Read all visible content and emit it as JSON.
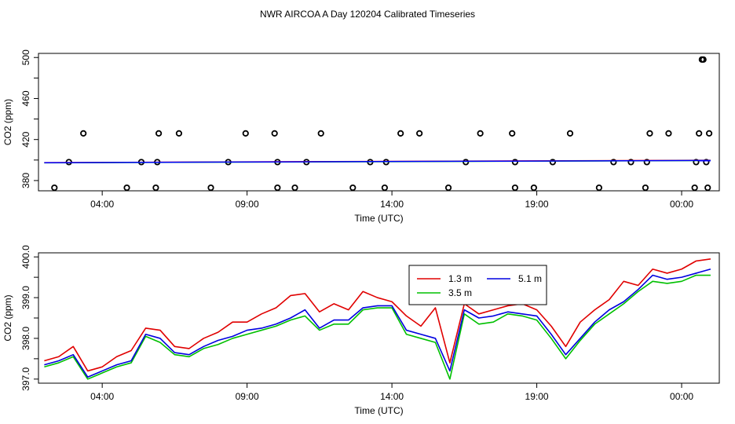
{
  "title": "NWR AIRCOA A  Day 120204  Calibrated Timeseries",
  "chart_data": [
    {
      "type": "scatter",
      "xlabel": "Time (UTC)",
      "ylabel": "CO2 (ppm)",
      "xlim": [
        1.8,
        25.3
      ],
      "ylim": [
        370,
        504
      ],
      "x_ticks": [
        4,
        9,
        14,
        19,
        24
      ],
      "x_tick_labels": [
        "04:00",
        "09:00",
        "14:00",
        "19:00",
        "00:00"
      ],
      "y_ticks": [
        380,
        420,
        460,
        500
      ],
      "y_tick_labels": [
        "380",
        "420",
        "460",
        "500"
      ],
      "y_minor_ticks": [
        400,
        440,
        480
      ],
      "grid": false,
      "series": [
        {
          "color": "#000000",
          "marker": "open-circle",
          "points": [
            [
              2.35,
              373
            ],
            [
              2.85,
              398
            ],
            [
              3.35,
              426
            ],
            [
              4.85,
              373
            ],
            [
              5.35,
              398
            ],
            [
              5.85,
              373
            ],
            [
              5.9,
              398
            ],
            [
              5.95,
              426
            ],
            [
              6.65,
              426
            ],
            [
              7.75,
              373
            ],
            [
              8.35,
              398
            ],
            [
              8.95,
              426
            ],
            [
              9.95,
              426
            ],
            [
              10.05,
              373
            ],
            [
              10.05,
              398
            ],
            [
              10.65,
              373
            ],
            [
              11.05,
              398
            ],
            [
              11.55,
              426
            ],
            [
              12.65,
              373
            ],
            [
              13.25,
              398
            ],
            [
              13.75,
              373
            ],
            [
              13.8,
              398
            ],
            [
              14.3,
              426
            ],
            [
              14.95,
              426
            ],
            [
              15.95,
              373
            ],
            [
              16.55,
              398
            ],
            [
              17.05,
              426
            ],
            [
              18.15,
              426
            ],
            [
              18.25,
              398
            ],
            [
              18.25,
              373
            ],
            [
              18.9,
              373
            ],
            [
              19.55,
              398
            ],
            [
              20.15,
              426
            ],
            [
              21.15,
              373
            ],
            [
              21.65,
              398
            ],
            [
              22.25,
              398
            ],
            [
              22.75,
              373
            ],
            [
              22.8,
              398
            ],
            [
              22.9,
              426
            ],
            [
              23.55,
              426
            ],
            [
              24.45,
              373
            ],
            [
              24.5,
              398
            ],
            [
              24.6,
              426
            ],
            [
              24.7,
              498
            ],
            [
              24.75,
              498
            ],
            [
              24.85,
              398
            ],
            [
              24.9,
              373
            ],
            [
              24.95,
              426
            ]
          ]
        },
        {
          "color": "#ff0000",
          "type": "line",
          "x": [
            2.0,
            25.0
          ],
          "y": [
            397.5,
            399.8
          ]
        },
        {
          "color": "#00cc00",
          "type": "line",
          "x": [
            2.0,
            25.0
          ],
          "y": [
            397.3,
            399.5
          ]
        },
        {
          "color": "#0000ff",
          "type": "line",
          "x": [
            2.0,
            25.0
          ],
          "y": [
            397.4,
            399.6
          ]
        }
      ]
    },
    {
      "type": "line",
      "xlabel": "Time (UTC)",
      "ylabel": "CO2 (ppm)",
      "xlim": [
        1.8,
        25.3
      ],
      "ylim": [
        396.9,
        400.1
      ],
      "x_ticks": [
        4,
        9,
        14,
        19,
        24
      ],
      "x_tick_labels": [
        "04:00",
        "09:00",
        "14:00",
        "19:00",
        "00:00"
      ],
      "y_ticks": [
        397.0,
        398.0,
        399.0,
        400.0
      ],
      "y_tick_labels": [
        "397.0",
        "398.0",
        "399.0",
        "400.0"
      ],
      "y_minor_ticks": [
        397.5,
        398.5,
        399.5
      ],
      "grid": false,
      "legend": {
        "placement": "top-center",
        "entries": [
          "1.3 m",
          "5.1 m",
          "3.5 m"
        ]
      },
      "x": [
        2.0,
        2.5,
        3.0,
        3.5,
        4.0,
        4.5,
        5.0,
        5.5,
        6.0,
        6.5,
        7.0,
        7.5,
        8.0,
        8.5,
        9.0,
        9.5,
        10.0,
        10.5,
        11.0,
        11.5,
        12.0,
        12.5,
        13.0,
        13.5,
        14.0,
        14.5,
        15.0,
        15.5,
        16.0,
        16.5,
        17.0,
        17.5,
        18.0,
        18.5,
        19.0,
        19.5,
        20.0,
        20.5,
        21.0,
        21.5,
        22.0,
        22.5,
        23.0,
        23.5,
        24.0,
        24.5,
        25.0
      ],
      "series": [
        {
          "name": "1.3 m",
          "color": "#e00000",
          "values": [
            397.45,
            397.55,
            397.8,
            397.2,
            397.3,
            397.55,
            397.7,
            398.25,
            398.2,
            397.8,
            397.75,
            398.0,
            398.15,
            398.4,
            398.4,
            398.6,
            398.75,
            399.05,
            399.1,
            398.65,
            398.85,
            398.7,
            399.15,
            399.0,
            398.9,
            398.55,
            398.3,
            398.75,
            397.4,
            398.85,
            398.6,
            398.7,
            398.8,
            398.85,
            398.7,
            398.3,
            397.8,
            398.4,
            398.7,
            398.95,
            399.4,
            399.3,
            399.7,
            399.6,
            399.7,
            399.9,
            399.95
          ]
        },
        {
          "name": "5.1 m",
          "color": "#0000e0",
          "values": [
            397.35,
            397.45,
            397.6,
            397.05,
            397.2,
            397.35,
            397.45,
            398.1,
            398.0,
            397.65,
            397.6,
            397.8,
            397.95,
            398.05,
            398.2,
            398.25,
            398.35,
            398.5,
            398.7,
            398.25,
            398.45,
            398.45,
            398.75,
            398.8,
            398.8,
            398.2,
            398.1,
            398.0,
            397.2,
            398.7,
            398.5,
            398.55,
            398.65,
            398.6,
            398.55,
            398.1,
            397.6,
            398.0,
            398.4,
            398.7,
            398.9,
            399.2,
            399.55,
            399.45,
            399.5,
            399.6,
            399.7
          ]
        },
        {
          "name": "3.5 m",
          "color": "#00c000",
          "values": [
            397.3,
            397.4,
            397.55,
            397.0,
            397.15,
            397.3,
            397.4,
            398.05,
            397.9,
            397.6,
            397.55,
            397.75,
            397.85,
            398.0,
            398.1,
            398.2,
            398.3,
            398.45,
            398.55,
            398.2,
            398.35,
            398.35,
            398.7,
            398.75,
            398.75,
            398.1,
            398.0,
            397.9,
            397.0,
            398.6,
            398.35,
            398.4,
            398.6,
            398.55,
            398.45,
            398.0,
            397.5,
            397.95,
            398.35,
            398.6,
            398.85,
            399.15,
            399.4,
            399.35,
            399.4,
            399.55,
            399.55
          ]
        }
      ]
    }
  ]
}
